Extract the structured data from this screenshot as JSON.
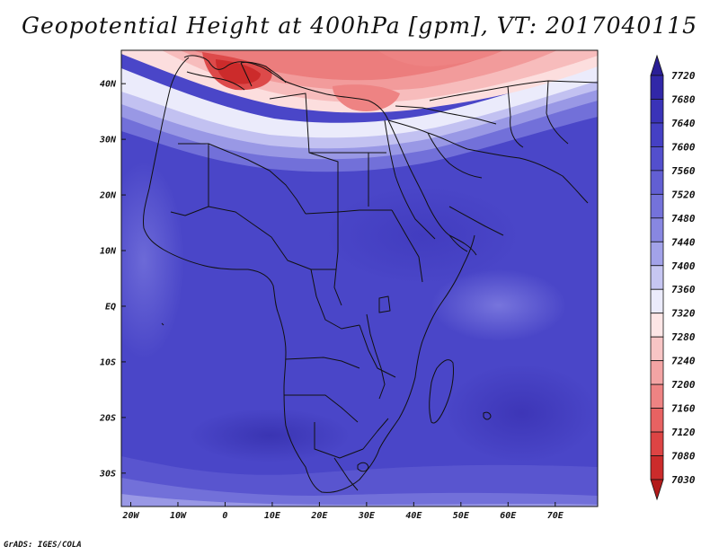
{
  "title": "Geopotential Height at 400hPa [gpm], VT: 2017040115",
  "credit": "GrADS: IGES/COLA",
  "map": {
    "projection": "latlon",
    "lon_range": [
      -22,
      79
    ],
    "lat_range": [
      -36,
      46
    ],
    "lon_ticks": [
      "20W",
      "10W",
      "0",
      "10E",
      "20E",
      "30E",
      "40E",
      "50E",
      "60E",
      "70E"
    ],
    "lat_ticks": [
      "40N",
      "30N",
      "20N",
      "10N",
      "EQ",
      "10S",
      "20S",
      "30S"
    ],
    "field": "Geopotential height at 400 hPa",
    "units": "gpm",
    "low_color": "#b2182b",
    "high_color": "#2c1f9a"
  },
  "colorbar": {
    "levels": [
      "7720",
      "7680",
      "7640",
      "7600",
      "7560",
      "7520",
      "7480",
      "7440",
      "7400",
      "7360",
      "7320",
      "7280",
      "7240",
      "7200",
      "7160",
      "7120",
      "7080",
      "7030"
    ],
    "colors": [
      "#2a1f96",
      "#3127a8",
      "#3a33b8",
      "#4540c4",
      "#534fcd",
      "#625fd3",
      "#7472da",
      "#8887e1",
      "#a2a2e9",
      "#c6c6f2",
      "#ebebfb",
      "#fde6e6",
      "#f8c5c5",
      "#f3a4a4",
      "#ee8383",
      "#e76262",
      "#dd4444",
      "#cc2b2b",
      "#b31b1b"
    ]
  }
}
